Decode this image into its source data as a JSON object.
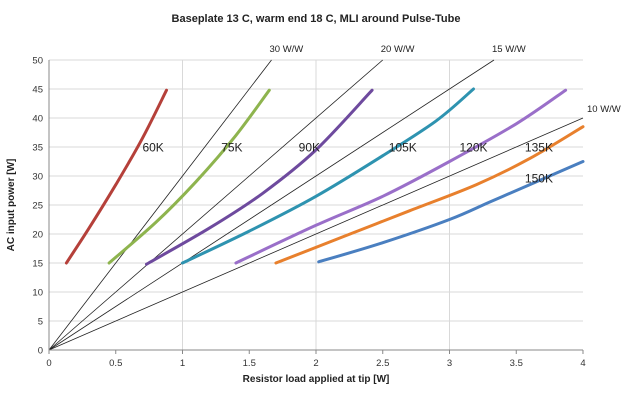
{
  "chart_data": {
    "type": "line",
    "title": "Baseplate 13 C, warm end 18 C, MLI around Pulse-Tube",
    "xlabel": "Resistor load applied at tip [W]",
    "ylabel": "AC input power [W]",
    "xlim": [
      0,
      4
    ],
    "ylim": [
      0,
      50
    ],
    "x_ticks": [
      "0",
      "0.5",
      "1",
      "1.5",
      "2",
      "2.5",
      "3",
      "3.5",
      "4"
    ],
    "y_ticks": [
      "0",
      "5",
      "10",
      "15",
      "20",
      "25",
      "30",
      "35",
      "40",
      "45",
      "50"
    ],
    "grid": "horizontal gridlines plus vertical lines at x = 1, 2, 3",
    "legend": "none",
    "reference_lines": [
      {
        "label": "30 W/W",
        "slope": 30
      },
      {
        "label": "20 W/W",
        "slope": 20
      },
      {
        "label": "15 W/W",
        "slope": 15
      },
      {
        "label": "10 W/W",
        "slope": 10
      }
    ],
    "series": [
      {
        "name": "60K",
        "color": "#b5403a",
        "x": [
          0.13,
          0.3,
          0.5,
          0.7,
          0.88
        ],
        "y": [
          15,
          21,
          28.5,
          36.5,
          44.8
        ]
      },
      {
        "name": "75K",
        "color": "#8eb44e",
        "x": [
          0.45,
          0.8,
          1.1,
          1.4,
          1.65
        ],
        "y": [
          15,
          22,
          29,
          37,
          44.8
        ]
      },
      {
        "name": "90K",
        "color": "#6e4a9e",
        "x": [
          0.73,
          1.2,
          1.6,
          2.0,
          2.42
        ],
        "y": [
          14.8,
          21,
          27,
          34.5,
          44.8
        ]
      },
      {
        "name": "105K",
        "color": "#2e93b0",
        "x": [
          1.0,
          1.5,
          2.0,
          2.5,
          2.9,
          3.18
        ],
        "y": [
          15,
          20.5,
          26.5,
          33.5,
          39.5,
          45
        ]
      },
      {
        "name": "120K",
        "color": "#9a6fc9",
        "x": [
          1.4,
          2.0,
          2.5,
          3.0,
          3.5,
          3.87
        ],
        "y": [
          15,
          21.5,
          26.5,
          32.5,
          39,
          44.8
        ]
      },
      {
        "name": "135K",
        "color": "#e8802d",
        "x": [
          1.7,
          2.2,
          2.7,
          3.2,
          3.6,
          4.0
        ],
        "y": [
          15,
          19.5,
          24,
          28.5,
          33,
          38.5
        ]
      },
      {
        "name": "150K",
        "color": "#4a7fc0",
        "x": [
          2.02,
          2.5,
          3.0,
          3.3,
          3.6,
          4.0
        ],
        "y": [
          15.2,
          18.5,
          22.5,
          25.5,
          28.5,
          32.5
        ]
      }
    ]
  }
}
